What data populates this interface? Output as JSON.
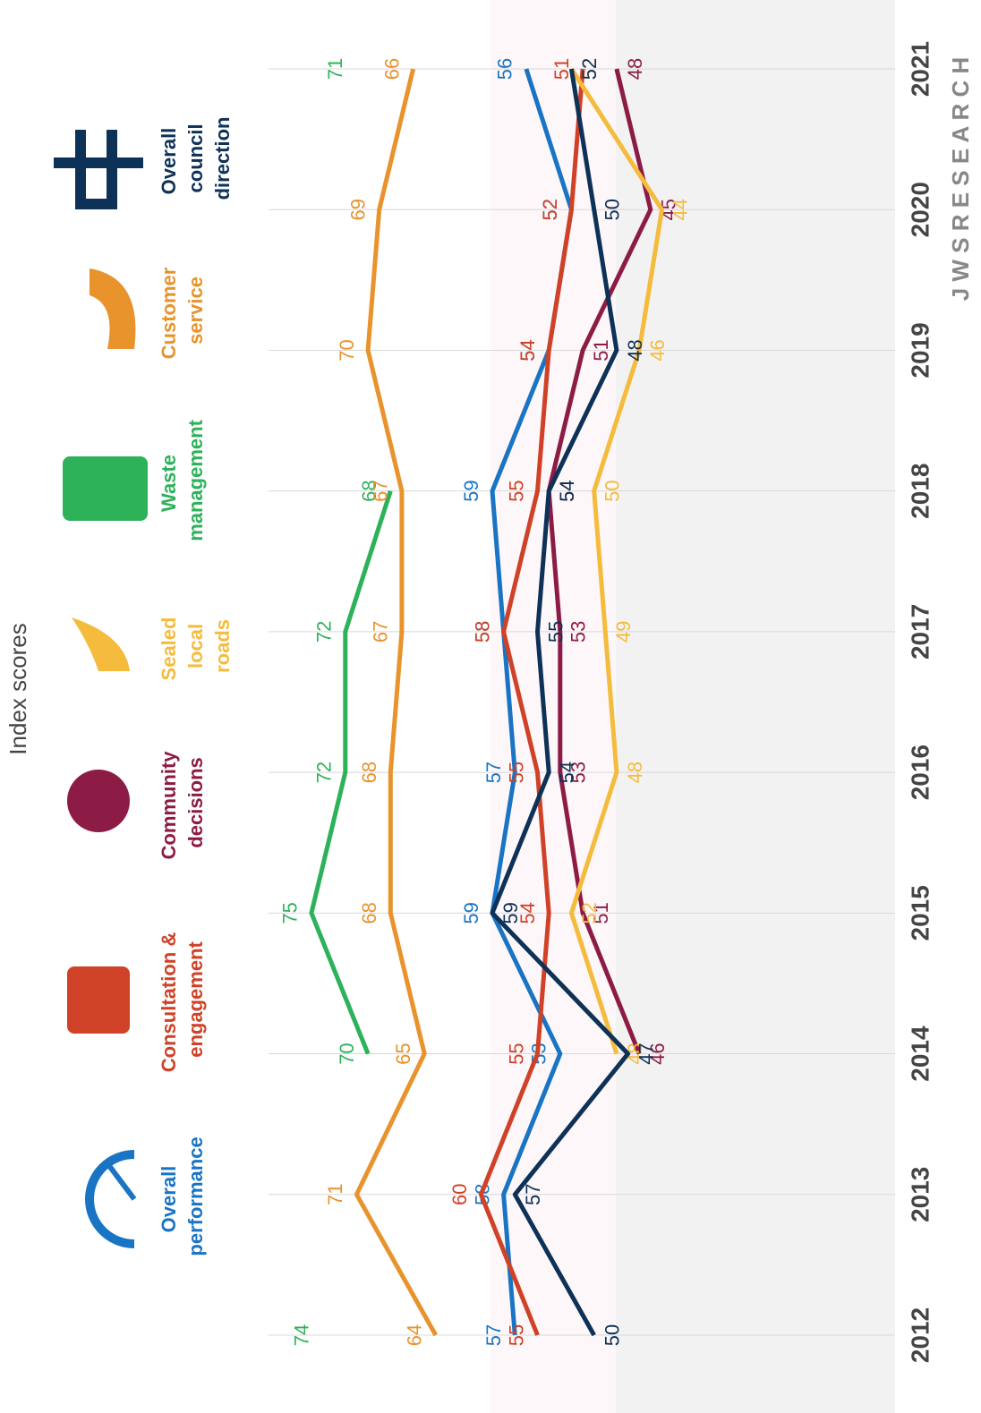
{
  "chart_data": {
    "type": "line",
    "title": "Index scores",
    "categories": [
      "2012",
      "2013",
      "2014",
      "2015",
      "2016",
      "2017",
      "2018",
      "2019",
      "2020",
      "2021"
    ],
    "ylim": [
      40,
      78
    ],
    "logo": "J W S R E S E A R C H",
    "series": [
      {
        "name": "Overall performance",
        "color": "#1a74c4",
        "values": [
          57,
          58,
          53,
          59,
          57,
          58,
          59,
          54,
          52,
          56
        ]
      },
      {
        "name": "Consultation & engagement",
        "color": "#cf4227",
        "values": [
          55,
          60,
          55,
          54,
          55,
          58,
          55,
          54,
          52,
          51
        ]
      },
      {
        "name": "Community decisions",
        "color": "#8c1c45",
        "values": [
          null,
          null,
          46,
          51,
          53,
          53,
          54,
          51,
          45,
          48
        ]
      },
      {
        "name": "Sealed local roads",
        "color": "#f5bb3c",
        "values": [
          null,
          null,
          48,
          52,
          48,
          49,
          50,
          46,
          44,
          52
        ]
      },
      {
        "name": "Waste management",
        "color": "#2db25a",
        "values": [
          74,
          null,
          70,
          75,
          72,
          72,
          68,
          null,
          null,
          71
        ]
      },
      {
        "name": "Customer service",
        "color": "#e8932c",
        "values": [
          64,
          71,
          65,
          68,
          68,
          67,
          67,
          70,
          69,
          66
        ]
      },
      {
        "name": "Overall council direction",
        "color": "#0e3157",
        "values": [
          50,
          57,
          47,
          59,
          54,
          55,
          54,
          48,
          50,
          52
        ]
      }
    ]
  }
}
